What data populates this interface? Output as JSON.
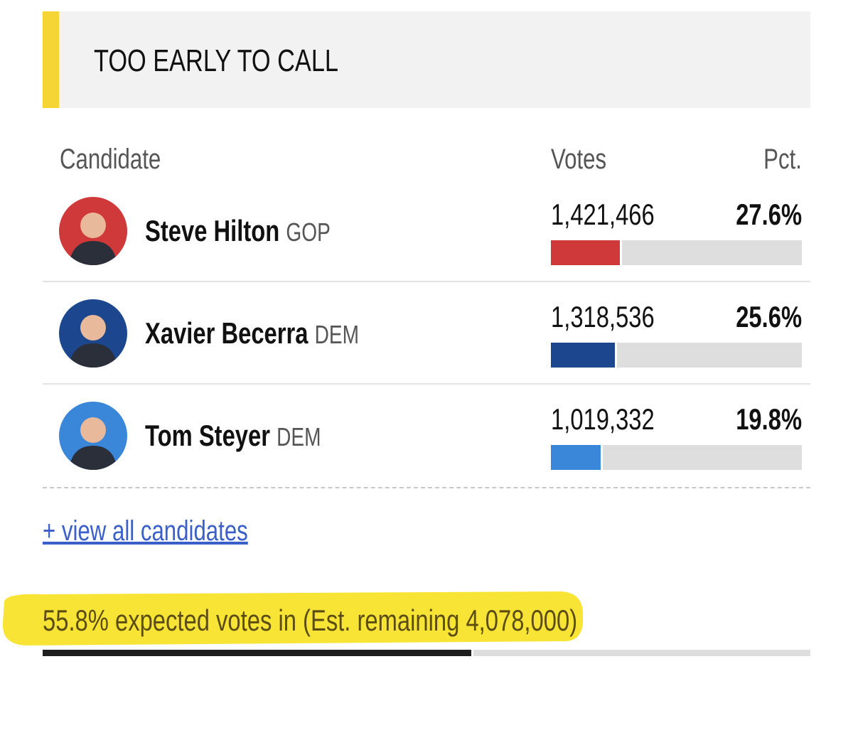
{
  "status": "TOO EARLY TO CALL",
  "table": {
    "headers": [
      "Candidate",
      "Votes",
      "Pct."
    ],
    "rows": [
      {
        "name": "Steve Hilton",
        "party": "GOP",
        "votes": "1,421,466",
        "pct": {
          "value": 27.6,
          "label": "27.6%"
        },
        "color": "#d0393a"
      },
      {
        "name": "Xavier Becerra",
        "party": "DEM",
        "votes": "1,318,536",
        "pct": {
          "value": 25.6,
          "label": "25.6%"
        },
        "color": "#1c478f"
      },
      {
        "name": "Tom Steyer",
        "party": "DEM",
        "votes": "1,019,332",
        "pct": {
          "value": 19.8,
          "label": "19.8%"
        },
        "color": "#3a86d9"
      }
    ]
  },
  "link": "+ view all candidates",
  "footer": {
    "text": "55.8% expected votes in (Est. remaining 4,078,000)",
    "expected_pct": 55.8
  }
}
